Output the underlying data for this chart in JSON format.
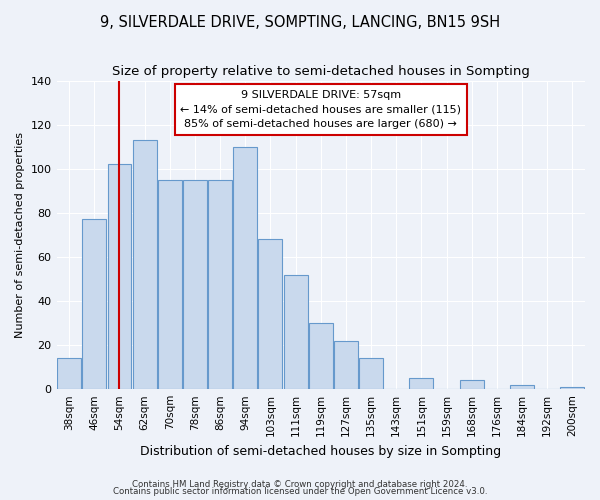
{
  "title": "9, SILVERDALE DRIVE, SOMPTING, LANCING, BN15 9SH",
  "subtitle": "Size of property relative to semi-detached houses in Sompting",
  "xlabel": "Distribution of semi-detached houses by size in Sompting",
  "ylabel": "Number of semi-detached properties",
  "categories": [
    "38sqm",
    "46sqm",
    "54sqm",
    "62sqm",
    "70sqm",
    "78sqm",
    "86sqm",
    "94sqm",
    "103sqm",
    "111sqm",
    "119sqm",
    "127sqm",
    "135sqm",
    "143sqm",
    "151sqm",
    "159sqm",
    "168sqm",
    "176sqm",
    "184sqm",
    "192sqm",
    "200sqm"
  ],
  "values": [
    14,
    77,
    102,
    113,
    95,
    95,
    95,
    110,
    68,
    52,
    30,
    22,
    14,
    0,
    5,
    0,
    4,
    0,
    2,
    0,
    1
  ],
  "bar_color": "#c9d9ed",
  "bar_edge_color": "#6699cc",
  "vline_x": 2,
  "vline_color": "#cc0000",
  "annotation_title": "9 SILVERDALE DRIVE: 57sqm",
  "annotation_line1": "← 14% of semi-detached houses are smaller (115)",
  "annotation_line2": "85% of semi-detached houses are larger (680) →",
  "annotation_box_color": "#ffffff",
  "annotation_box_edge": "#cc0000",
  "ylim": [
    0,
    140
  ],
  "yticks": [
    0,
    20,
    40,
    60,
    80,
    100,
    120,
    140
  ],
  "footer1": "Contains HM Land Registry data © Crown copyright and database right 2024.",
  "footer2": "Contains public sector information licensed under the Open Government Licence v3.0.",
  "bg_color": "#eef2f9",
  "grid_color": "#ffffff",
  "title_fontsize": 10.5,
  "subtitle_fontsize": 9.5
}
